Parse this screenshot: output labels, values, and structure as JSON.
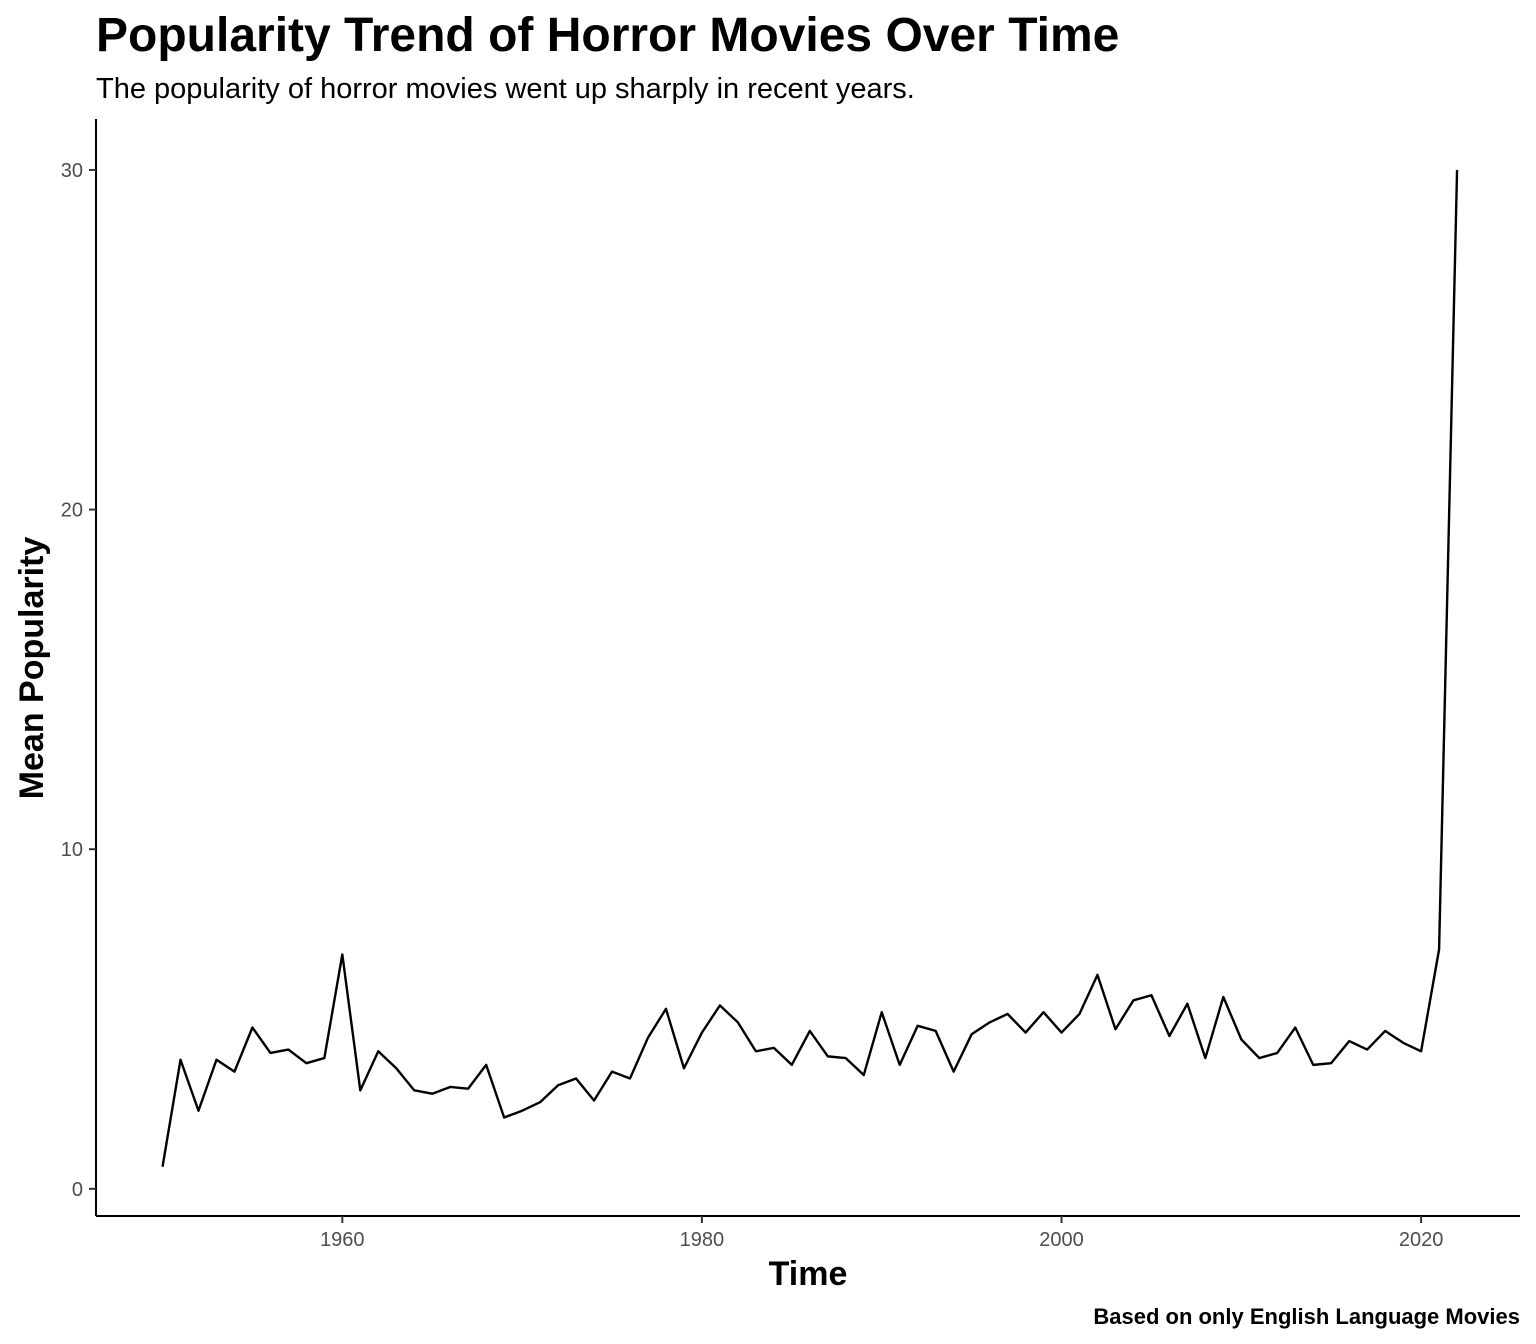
{
  "chart_data": {
    "type": "line",
    "title": "Popularity Trend of Horror Movies Over Time",
    "subtitle": "The popularity of horror movies went up sharply in recent years.",
    "xlabel": "Time",
    "ylabel": "Mean Popularity",
    "caption": "Based on only English Language Movies",
    "xlim": [
      1946.3,
      2025.5
    ],
    "ylim": [
      -0.8,
      31.5
    ],
    "x_ticks": [
      1960,
      1980,
      2000,
      2020
    ],
    "y_ticks": [
      0,
      10,
      20,
      30
    ],
    "x_tick_labels": [
      "1960",
      "1980",
      "2000",
      "2020"
    ],
    "y_tick_labels": [
      "0",
      "10",
      "20",
      "30"
    ],
    "grid": false,
    "line_color": "#000000",
    "series": [
      {
        "x": [
          1950,
          1951,
          1952,
          1953,
          1954,
          1955,
          1956,
          1957,
          1958,
          1959,
          1960,
          1961,
          1962,
          1963,
          1964,
          1965,
          1966,
          1967,
          1968,
          1969,
          1970,
          1971,
          1972,
          1973,
          1974,
          1975,
          1976,
          1977,
          1978,
          1979,
          1980,
          1981,
          1982,
          1983,
          1984,
          1985,
          1986,
          1987,
          1988,
          1989,
          1990,
          1991,
          1992,
          1993,
          1994,
          1995,
          1996,
          1997,
          1998,
          1999,
          2000,
          2001,
          2002,
          2003,
          2004,
          2005,
          2006,
          2007,
          2008,
          2009,
          2010,
          2011,
          2012,
          2013,
          2014,
          2015,
          2016,
          2017,
          2018,
          2019,
          2020,
          2021,
          2022
        ],
        "y": [
          0.65,
          3.8,
          2.3,
          3.8,
          3.45,
          4.75,
          4.0,
          4.1,
          3.7,
          3.85,
          6.9,
          2.9,
          4.05,
          3.55,
          2.9,
          2.8,
          3.0,
          2.95,
          3.65,
          2.1,
          2.3,
          2.55,
          3.05,
          3.25,
          2.6,
          3.45,
          3.25,
          4.45,
          5.3,
          3.55,
          4.6,
          5.4,
          4.9,
          4.05,
          4.15,
          3.65,
          4.65,
          3.9,
          3.85,
          3.35,
          5.2,
          3.65,
          4.8,
          4.65,
          3.45,
          4.55,
          4.9,
          5.15,
          4.6,
          5.2,
          4.6,
          5.15,
          6.3,
          4.7,
          5.55,
          5.7,
          4.5,
          5.45,
          3.85,
          5.65,
          4.4,
          3.85,
          4.0,
          4.75,
          3.65,
          3.7,
          4.35,
          4.1,
          4.65,
          4.3,
          4.05,
          7.05,
          30.0
        ]
      }
    ]
  }
}
